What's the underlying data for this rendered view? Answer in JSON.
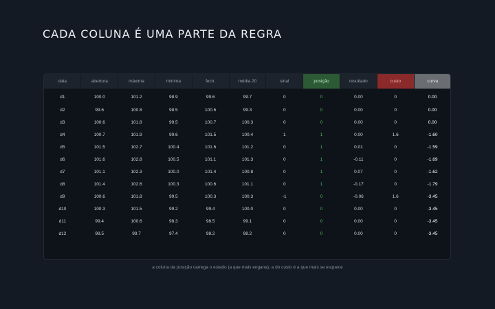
{
  "title": "CADA COLUNA É UMA PARTE DA REGRA",
  "table": {
    "headers": [
      "data",
      "abertura",
      "máxima",
      "mínima",
      "fech.",
      "média 20",
      "sinal",
      "posição",
      "resultado",
      "custo",
      "curva"
    ],
    "rows": [
      [
        "d1",
        "100.0",
        "101.2",
        "98.9",
        "99.6",
        "99.7",
        "0",
        "0",
        "0.00",
        "0",
        "0.00"
      ],
      [
        "d2",
        "99.6",
        "100.8",
        "98.5",
        "100.6",
        "99.3",
        "0",
        "0",
        "0.00",
        "0",
        "0.00"
      ],
      [
        "d3",
        "100.6",
        "101.8",
        "99.5",
        "100.7",
        "100.3",
        "0",
        "0",
        "0.00",
        "0",
        "0.00"
      ],
      [
        "d4",
        "100.7",
        "101.9",
        "99.6",
        "101.5",
        "100.4",
        "1",
        "1",
        "0.00",
        "1.6",
        "-1.60"
      ],
      [
        "d5",
        "101.5",
        "102.7",
        "100.4",
        "101.6",
        "101.2",
        "0",
        "1",
        "0.01",
        "0",
        "-1.59"
      ],
      [
        "d6",
        "101.6",
        "102.8",
        "100.5",
        "101.1",
        "101.3",
        "0",
        "1",
        "-0.11",
        "0",
        "-1.69"
      ],
      [
        "d7",
        "101.1",
        "102.3",
        "100.0",
        "101.4",
        "100.8",
        "0",
        "1",
        "0.07",
        "0",
        "-1.62"
      ],
      [
        "d8",
        "101.4",
        "102.6",
        "100.3",
        "100.6",
        "101.1",
        "0",
        "1",
        "-0.17",
        "0",
        "-1.79"
      ],
      [
        "d9",
        "100.6",
        "101.8",
        "99.5",
        "100.3",
        "100.3",
        "-1",
        "0",
        "-0.06",
        "1.6",
        "-3.45"
      ],
      [
        "d10",
        "100.3",
        "101.5",
        "99.2",
        "99.4",
        "100.0",
        "0",
        "0",
        "0.00",
        "0",
        "-3.45"
      ],
      [
        "d11",
        "99.4",
        "100.6",
        "98.3",
        "98.5",
        "99.1",
        "0",
        "0",
        "0.00",
        "0",
        "-3.45"
      ],
      [
        "d12",
        "98.5",
        "99.7",
        "97.4",
        "98.2",
        "98.2",
        "0",
        "0",
        "0.00",
        "0",
        "-3.45"
      ]
    ]
  },
  "caption": "a coluna da posição carrega o estado (a que mais engana); a do custo é a que mais se esquece",
  "colors": {
    "background": "#141a23",
    "posicao_header": "#2c5a35",
    "posicao_values": "#4fb85c",
    "custo_header": "#8a2a2a",
    "curva_header": "#6a6d71"
  }
}
